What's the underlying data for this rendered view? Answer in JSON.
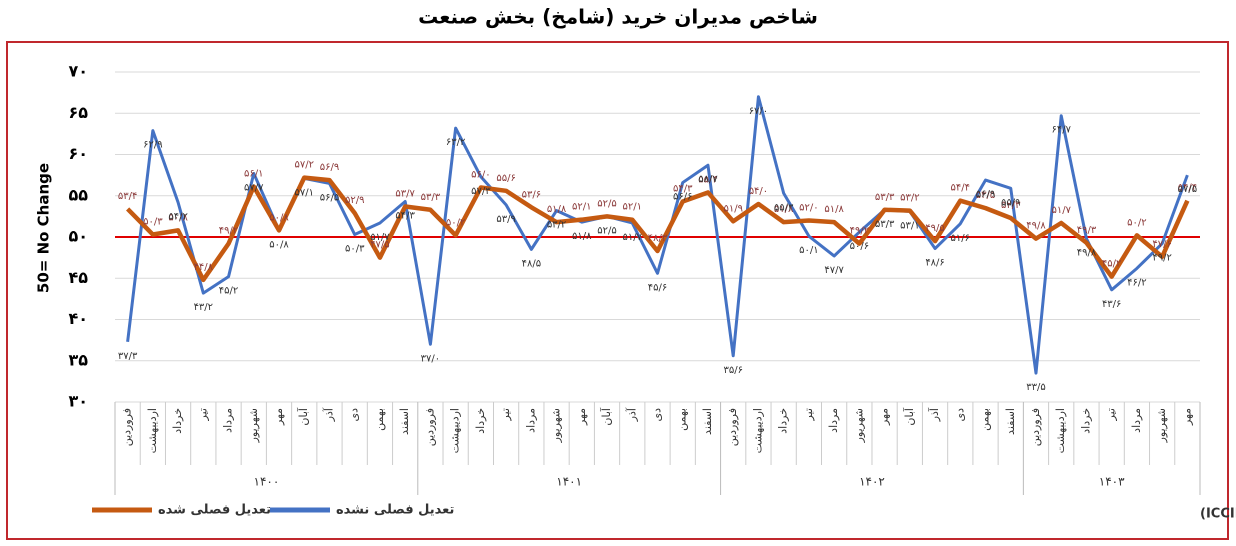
{
  "chart_data": {
    "type": "line",
    "title": "شاخص مدیران خرید (شامخ) بخش صنعت",
    "ylabel": "50= No Change",
    "source": "منبع: اتاق بازرگانی، صنایع، معادن و کشاورزی ایران (ICCIMA)",
    "groups": [
      {
        "label": "۱۴۰۰",
        "categories": [
          "فروردین",
          "اردیبهشت",
          "خرداد",
          "تیر",
          "مرداد",
          "شهریور",
          "مهر",
          "آبان",
          "آذر",
          "دی",
          "بهمن",
          "اسفند"
        ]
      },
      {
        "label": "۱۴۰۱",
        "categories": [
          "فروردین",
          "اردیبهشت",
          "خرداد",
          "تیر",
          "مرداد",
          "شهریور",
          "مهر",
          "آبان",
          "آذر",
          "دی",
          "بهمن",
          "اسفند"
        ]
      },
      {
        "label": "۱۴۰۲",
        "categories": [
          "فروردین",
          "اردیبهشت",
          "خرداد",
          "تیر",
          "مرداد",
          "شهریور",
          "مهر",
          "آبان",
          "آذر",
          "دی",
          "بهمن",
          "اسفند"
        ]
      },
      {
        "label": "۱۴۰۳",
        "categories": [
          "فروردین",
          "اردیبهشت",
          "خرداد",
          "تیر",
          "مرداد",
          "شهریور",
          "مهر"
        ]
      }
    ],
    "series": [
      {
        "name": "تعدیل فصلی شده",
        "color": "#c55a11",
        "label_color": "#8b3a3a",
        "values": [
          53.4,
          50.3,
          50.8,
          44.8,
          49.2,
          56.1,
          50.8,
          57.2,
          56.9,
          52.9,
          47.5,
          53.7,
          53.3,
          50.2,
          56,
          55.6,
          53.6,
          51.8,
          52.1,
          52.5,
          52.1,
          48.3,
          54.3,
          55.4,
          51.9,
          54,
          51.8,
          52,
          51.8,
          49.2,
          53.3,
          53.2,
          49.5,
          54.4,
          53.5,
          52.3,
          49.8,
          51.7,
          49.3,
          45.2,
          50.2,
          47.6,
          54.4
        ],
        "value_labels": [
          "۵۳/۴",
          "۵۰/۳",
          "۵۰/۸",
          "۴۴/۸",
          "۴۹/۲",
          "۵۶/۱",
          "۵۰/۸",
          "۵۷/۲",
          "۵۶/۹",
          "۵۲/۹",
          "۴۷/۵",
          "۵۳/۷",
          "۵۳/۳",
          "۵۰/۲",
          "۵۶/۰",
          "۵۵/۶",
          "۵۳/۶",
          "۵۱/۸",
          "۵۲/۱",
          "۵۲/۵",
          "۵۲/۱",
          "۴۸/۳",
          "۵۴/۳",
          "۵۵/۴",
          "۵۱/۹",
          "۵۴/۰",
          "۵۱/۸",
          "۵۲/۰",
          "۵۱/۸",
          "۴۹/۲",
          "۵۳/۳",
          "۵۳/۲",
          "۴۹/۵",
          "۵۴/۴",
          "۵۳/۵",
          "۵۲/۳",
          "۴۹/۸",
          "۵۱/۷",
          "۴۹/۳",
          "۴۵/۲",
          "۵۰/۲",
          "۴۷/۶",
          "۵۴/۴"
        ]
      },
      {
        "name": "تعدیل فصلی نشده",
        "color": "#4472c4",
        "label_color": "#333333",
        "values": [
          37.3,
          62.9,
          54.2,
          43.2,
          45.2,
          57.7,
          50.8,
          57.1,
          56.5,
          50.3,
          51.7,
          54.3,
          37,
          63.2,
          57.3,
          53.9,
          48.5,
          53.2,
          51.8,
          52.5,
          51.7,
          45.6,
          56.6,
          58.7,
          35.6,
          67,
          55.3,
          50.1,
          47.7,
          50.6,
          53.3,
          53.1,
          48.6,
          51.6,
          56.9,
          55.9,
          33.5,
          64.7,
          49.8,
          43.6,
          46.2,
          49.2,
          57.5
        ],
        "value_labels": [
          "۳۷/۳",
          "۶۲/۹",
          "۵۴/۲",
          "۴۳/۲",
          "۴۵/۲",
          "۵۷/۷",
          "۵۰/۸",
          "۵۷/۱",
          "۵۶/۵",
          "۵۰/۳",
          "۵۱/۷",
          "۵۴/۳",
          "۳۷/۰",
          "۶۳/۲",
          "۵۷/۳",
          "۵۳/۹",
          "۴۸/۵",
          "۵۳/۲",
          "۵۱/۸",
          "۵۲/۵",
          "۵۱/۷",
          "۴۵/۶",
          "۵۶/۶",
          "۵۸/۷",
          "۳۵/۶",
          "۶۷/۰",
          "۵۵/۳",
          "۵۰/۱",
          "۴۷/۷",
          "۵۰/۶",
          "۵۳/۳",
          "۵۳/۱",
          "۴۸/۶",
          "۵۱/۶",
          "۵۶/۹",
          "۵۵/۹",
          "۳۳/۵",
          "۶۴/۷",
          "۴۹/۸",
          "۴۳/۶",
          "۴۶/۲",
          "۴۹/۲",
          "۵۷/۵"
        ]
      }
    ],
    "reference_line": {
      "value": 50,
      "color": "#e00000"
    },
    "ylim": [
      30,
      70
    ],
    "yticks": [
      {
        "value": 30,
        "label": "۳۰"
      },
      {
        "value": 35,
        "label": "۳۵"
      },
      {
        "value": 40,
        "label": "۴۰"
      },
      {
        "value": 45,
        "label": "۴۵"
      },
      {
        "value": 50,
        "label": "۵۰"
      },
      {
        "value": 55,
        "label": "۵۵"
      },
      {
        "value": 60,
        "label": "۶۰"
      },
      {
        "value": 65,
        "label": "۶۵"
      },
      {
        "value": 70,
        "label": "۷۰"
      }
    ],
    "grid": true,
    "legend": "lower left"
  }
}
